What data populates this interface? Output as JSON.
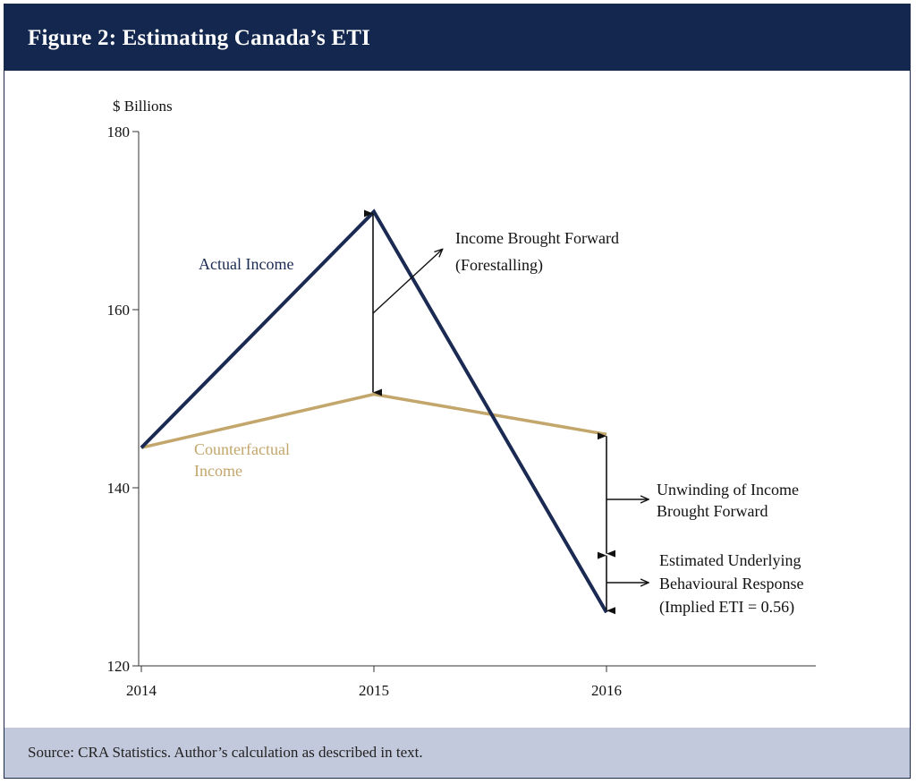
{
  "figure": {
    "title": "Figure 2: Estimating Canada’s ETI",
    "source": "Source: CRA Statistics. Author’s calculation as described in text."
  },
  "colors": {
    "header_bg": "#14284f",
    "footer_bg": "#c3c9dc",
    "actual": "#1a2a52",
    "counterfactual": "#c2a66b"
  },
  "chart_data": {
    "type": "line",
    "ylabel": "$ Billions",
    "xlabel": "",
    "categories": [
      "2014",
      "2015",
      "2016"
    ],
    "ylim": [
      120,
      180
    ],
    "yticks": [
      120,
      140,
      160,
      180
    ],
    "grid": false,
    "series": [
      {
        "name": "Actual Income",
        "values": [
          144.5,
          171,
          126
        ],
        "color": "#1a2a52"
      },
      {
        "name": "Counterfactual Income",
        "values": [
          144.5,
          150.5,
          146
        ],
        "color": "#c2a66b"
      }
    ],
    "series_labels": {
      "actual": "Actual Income",
      "counterfactual_line1": "Counterfactual",
      "counterfactual_line2": "Income"
    },
    "annotations": {
      "forestalling": [
        "Income Brought Forward",
        "(Forestalling)"
      ],
      "unwinding": [
        "Unwinding of Income",
        "Brought Forward"
      ],
      "behavioural": [
        "Estimated Underlying",
        "Behavioural Response",
        "(Implied ETI = 0.56)"
      ]
    },
    "annotation_values": {
      "forestalling_span": [
        150.5,
        171
      ],
      "unwinding_span": [
        132.5,
        146
      ],
      "behavioural_span": [
        126,
        132.5
      ]
    }
  }
}
